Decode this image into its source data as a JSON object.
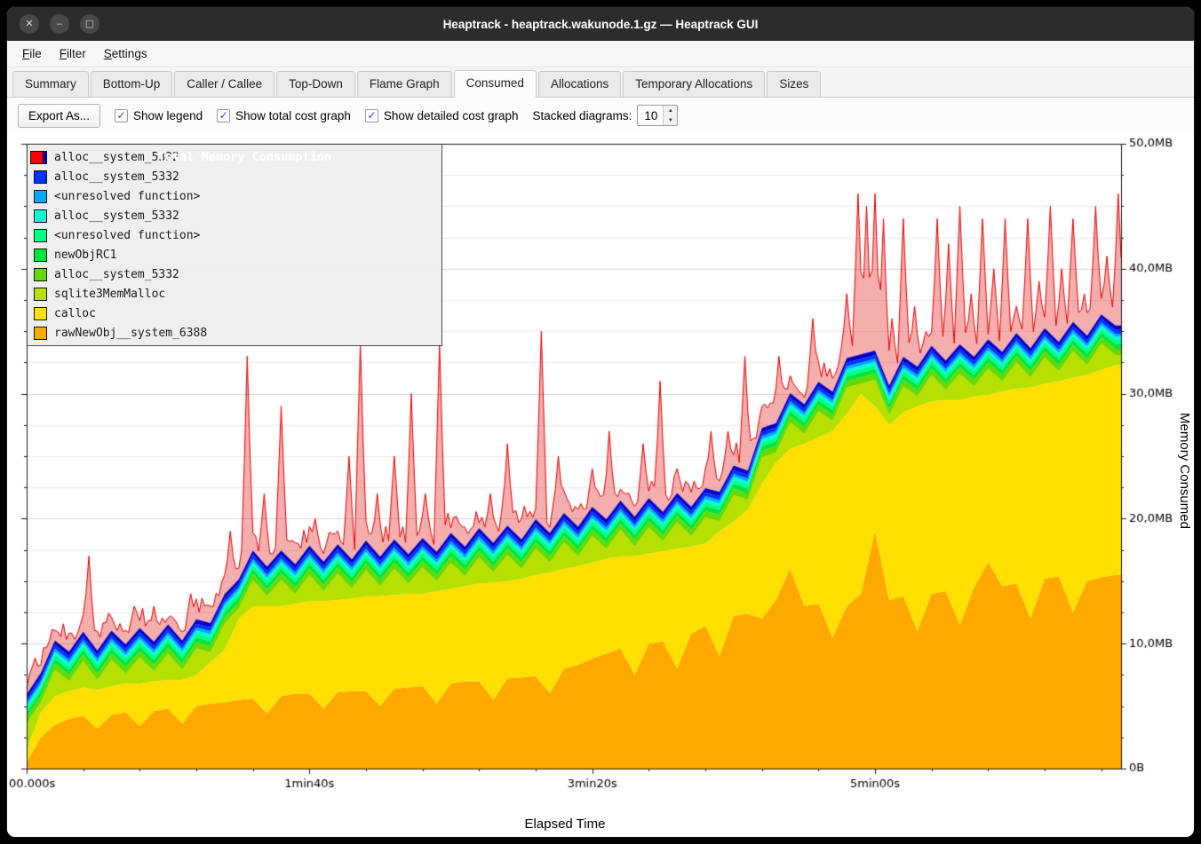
{
  "window": {
    "title": "Heaptrack - heaptrack.wakunode.1.gz — Heaptrack GUI",
    "controls": {
      "close": "✕",
      "minimize": "–",
      "maximize": "▢"
    }
  },
  "menubar": {
    "items": [
      {
        "label": "File",
        "underline": 0
      },
      {
        "label": "Filter",
        "underline": 0
      },
      {
        "label": "Settings",
        "underline": 0
      }
    ]
  },
  "tabs": {
    "active": "Consumed",
    "items": [
      "Summary",
      "Bottom-Up",
      "Caller / Callee",
      "Top-Down",
      "Flame Graph",
      "Consumed",
      "Allocations",
      "Temporary Allocations",
      "Sizes"
    ]
  },
  "toolbar": {
    "export_label": "Export As...",
    "checkboxes": [
      {
        "label": "Show legend",
        "checked": true
      },
      {
        "label": "Show total cost graph",
        "checked": true
      },
      {
        "label": "Show detailed cost graph",
        "checked": true
      }
    ],
    "stacked_label": "Stacked diagrams:",
    "stacked_value": "10",
    "spin_up": "▲",
    "spin_down": "▼"
  },
  "chart_data": {
    "type": "area",
    "stacked": true,
    "title": "Total Memory Consumption",
    "xlabel": "Elapsed Time",
    "ylabel": "Memory Consumed",
    "ylim": [
      0,
      50
    ],
    "y_unit": "MB",
    "x_max_s": 387,
    "t_step_s": 5,
    "grid": "horizontal, minor every 2.5MB, major every 10MB",
    "legend_position": "top-left overlay",
    "y_ticks": [
      {
        "mb": 0,
        "label": "0B"
      },
      {
        "mb": 10,
        "label": "10,0MB"
      },
      {
        "mb": 20,
        "label": "20,0MB"
      },
      {
        "mb": 30,
        "label": "30,0MB"
      },
      {
        "mb": 40,
        "label": "40,0MB"
      },
      {
        "mb": 50,
        "label": "50,0MB"
      }
    ],
    "x_ticks": [
      {
        "s": 0,
        "label": "00.000s"
      },
      {
        "s": 100,
        "label": "1min40s"
      },
      {
        "s": 200,
        "label": "3min20s"
      },
      {
        "s": 300,
        "label": "5min00s"
      }
    ],
    "legend": {
      "title": "Total Memory Consumption",
      "title_color": "#ff0000",
      "items": [
        {
          "label": "alloc__system_5332",
          "color": "#0000cc"
        },
        {
          "label": "alloc__system_5332",
          "color": "#0033ff"
        },
        {
          "label": "<unresolved function>",
          "color": "#00aaff"
        },
        {
          "label": "alloc__system_5332",
          "color": "#00ffd5"
        },
        {
          "label": "<unresolved function>",
          "color": "#00ff88"
        },
        {
          "label": "newObjRC1",
          "color": "#00e53c"
        },
        {
          "label": "alloc__system_5332",
          "color": "#66d900"
        },
        {
          "label": "sqlite3MemMalloc",
          "color": "#b5e000"
        },
        {
          "label": "calloc",
          "color": "#ffe000"
        },
        {
          "label": "rawNewObj__system_6388",
          "color": "#ffa800"
        }
      ]
    },
    "series": [
      {
        "label": "rawNewObj__system_6388",
        "color": "#ffa800",
        "values": [
          0.5,
          2.5,
          3.5,
          4.0,
          4.2,
          3.2,
          4.3,
          4.5,
          3.4,
          4.6,
          4.8,
          3.6,
          5.0,
          5.2,
          5.3,
          5.5,
          5.6,
          4.4,
          5.8,
          6.0,
          6.0,
          4.8,
          6.1,
          6.2,
          6.2,
          5.0,
          6.4,
          6.5,
          6.6,
          5.2,
          6.8,
          7.0,
          7.0,
          5.5,
          7.2,
          7.3,
          7.4,
          6.0,
          8.0,
          8.3,
          8.8,
          9.2,
          9.6,
          7.5,
          10.0,
          10.2,
          8.0,
          10.8,
          11.4,
          9.0,
          12.2,
          12.4,
          12.0,
          13.5,
          16.0,
          13.0,
          13.2,
          10.5,
          13.0,
          14.0,
          19.0,
          13.5,
          13.8,
          11.0,
          14.0,
          14.2,
          11.5,
          14.5,
          16.5,
          14.6,
          14.8,
          12.0,
          15.2,
          15.4,
          12.5,
          15.0,
          15.3,
          15.5
        ]
      },
      {
        "label": "calloc",
        "color": "#ffe000",
        "values": [
          1.0,
          2.0,
          2.3,
          2.2,
          2.3,
          3.1,
          2.3,
          2.3,
          3.4,
          2.4,
          2.3,
          3.5,
          2.5,
          3.3,
          4.2,
          6.5,
          7.4,
          8.6,
          7.2,
          7.2,
          7.4,
          8.6,
          7.4,
          7.4,
          7.6,
          8.8,
          7.5,
          7.5,
          7.4,
          9.0,
          7.6,
          7.6,
          7.8,
          9.4,
          7.8,
          7.9,
          8.1,
          9.7,
          8.0,
          7.9,
          7.7,
          7.6,
          7.4,
          9.5,
          7.2,
          7.2,
          9.6,
          7.0,
          6.6,
          10.0,
          7.6,
          8.3,
          10.8,
          11.0,
          9.6,
          13.0,
          13.3,
          16.5,
          15.4,
          16.0,
          10.0,
          14.0,
          14.7,
          18.0,
          15.4,
          15.3,
          18.0,
          15.3,
          13.4,
          15.6,
          15.6,
          18.5,
          15.6,
          15.6,
          18.8,
          16.5,
          16.6,
          16.8
        ]
      },
      {
        "label": "sqlite3MemMalloc",
        "color": "#b5e000",
        "alternate": [
          2.1,
          0.8
        ]
      },
      {
        "label": "alloc__system_5332",
        "color": "#66d900",
        "const_mb": 0.5
      },
      {
        "label": "newObjRC1",
        "color": "#00e53c",
        "const_mb": 0.4
      },
      {
        "label": "<unresolved function>",
        "color": "#00ff88",
        "const_mb": 0.3
      },
      {
        "label": "alloc__system_5332",
        "color": "#00ffd5",
        "const_mb": 0.25
      },
      {
        "label": "<unresolved function>",
        "color": "#00aaff",
        "const_mb": 0.25
      },
      {
        "label": "alloc__system_5332",
        "color": "#0033ff",
        "const_mb": 0.3
      },
      {
        "label": "alloc__system_5332",
        "color": "#0000cc",
        "const_mb": 0.35
      }
    ],
    "total": {
      "label": "Total Memory Consumption",
      "color": "#e60000",
      "fill_alpha": 0.33,
      "baseline_offset_mb": 0.3,
      "noise_amp_mb": 1.6,
      "spikes_t_mb": [
        [
          8,
          8
        ],
        [
          15,
          10
        ],
        [
          22,
          17
        ],
        [
          30,
          12
        ],
        [
          38,
          13
        ],
        [
          45,
          13
        ],
        [
          52,
          12
        ],
        [
          58,
          14
        ],
        [
          65,
          13
        ],
        [
          72,
          19
        ],
        [
          78,
          33
        ],
        [
          84,
          22
        ],
        [
          90,
          29
        ],
        [
          96,
          18
        ],
        [
          102,
          20
        ],
        [
          108,
          18
        ],
        [
          114,
          25
        ],
        [
          118,
          34
        ],
        [
          124,
          22
        ],
        [
          130,
          25
        ],
        [
          136,
          30
        ],
        [
          141,
          22
        ],
        [
          146,
          34
        ],
        [
          152,
          20
        ],
        [
          158,
          19
        ],
        [
          164,
          22
        ],
        [
          170,
          26
        ],
        [
          176,
          21
        ],
        [
          182,
          35
        ],
        [
          188,
          25
        ],
        [
          194,
          21
        ],
        [
          200,
          24
        ],
        [
          206,
          27
        ],
        [
          212,
          22
        ],
        [
          218,
          26
        ],
        [
          224,
          31
        ],
        [
          230,
          24
        ],
        [
          236,
          23
        ],
        [
          242,
          27
        ],
        [
          248,
          27
        ],
        [
          254,
          33
        ],
        [
          260,
          29
        ],
        [
          266,
          33
        ],
        [
          272,
          30
        ],
        [
          278,
          36
        ],
        [
          284,
          32
        ],
        [
          290,
          38
        ],
        [
          294,
          46
        ],
        [
          297,
          45
        ],
        [
          300,
          46
        ],
        [
          303,
          44
        ],
        [
          306,
          36
        ],
        [
          310,
          44
        ],
        [
          314,
          37
        ],
        [
          318,
          35
        ],
        [
          322,
          44
        ],
        [
          326,
          42
        ],
        [
          330,
          45
        ],
        [
          334,
          38
        ],
        [
          338,
          44
        ],
        [
          342,
          40
        ],
        [
          346,
          44
        ],
        [
          350,
          37
        ],
        [
          354,
          44
        ],
        [
          358,
          39
        ],
        [
          362,
          45
        ],
        [
          366,
          40
        ],
        [
          370,
          44
        ],
        [
          374,
          38
        ],
        [
          378,
          45
        ],
        [
          382,
          41
        ],
        [
          386,
          46
        ]
      ]
    }
  }
}
